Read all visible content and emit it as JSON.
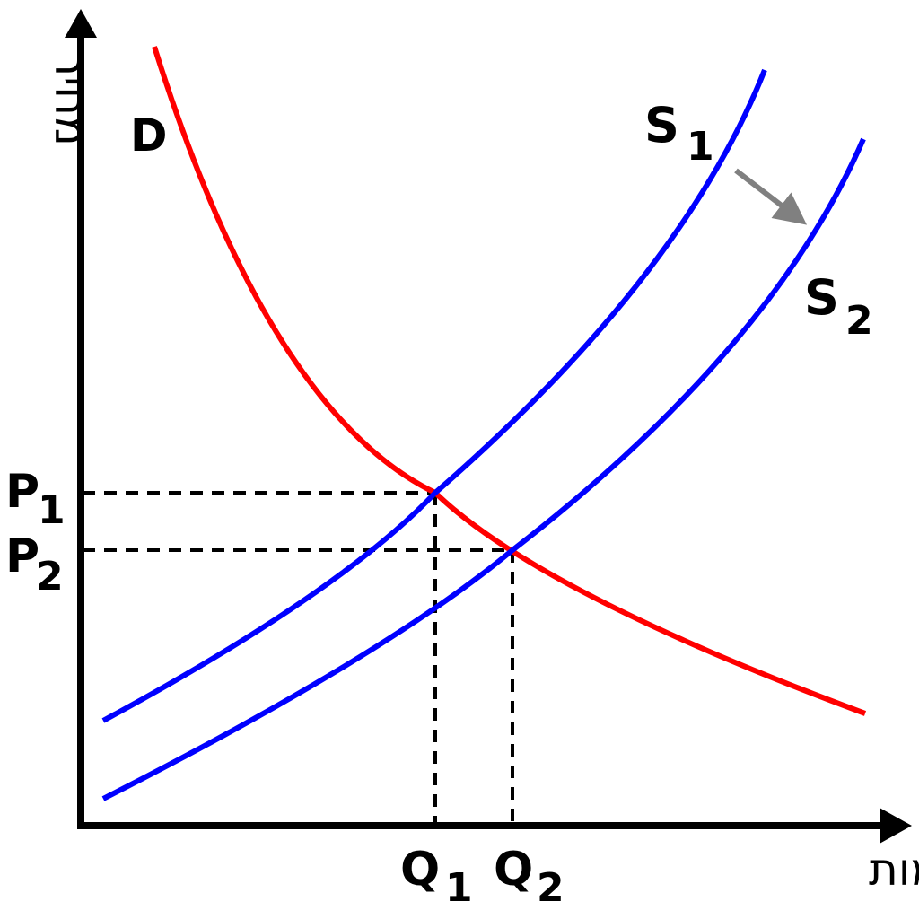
{
  "axes": {
    "y_title": "מחיר",
    "x_title": "כמות"
  },
  "curves": {
    "demand": {
      "label": "D",
      "color": "#ff0000"
    },
    "supply_1": {
      "label": "S",
      "subscript": "1",
      "color": "#0000ff"
    },
    "supply_2": {
      "label": "S",
      "subscript": "2",
      "color": "#0000ff"
    }
  },
  "equilibria": {
    "p1": {
      "label": "P",
      "subscript": "1"
    },
    "p2": {
      "label": "P",
      "subscript": "2"
    },
    "q1": {
      "label": "Q",
      "subscript": "1"
    },
    "q2": {
      "label": "Q",
      "subscript": "2"
    }
  },
  "shift_arrow": {
    "color": "#808080"
  },
  "colors": {
    "axis": "#000000",
    "guides": "#000000"
  }
}
